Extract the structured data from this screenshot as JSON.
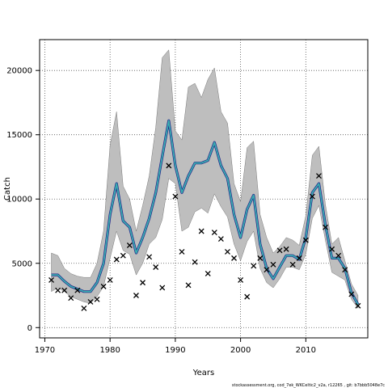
{
  "chart_data": {
    "type": "line",
    "xlabel": "Years",
    "ylabel": "Catch",
    "xlim": [
      1969.2,
      2019.5
    ],
    "ylim": [
      -800,
      22400
    ],
    "x_ticks": [
      1970,
      1980,
      1990,
      2000,
      2010
    ],
    "y_ticks": [
      0,
      5000,
      10000,
      15000,
      20000
    ],
    "grid": true,
    "footer": "stockassessment.org, cod_7ek_WKCeltic2_v2a, r12265 , git: b7bbb5048e7c",
    "colors": {
      "band": "#bebebe",
      "band_edge": "#7a7a7a",
      "line_main": "#20208a",
      "line_alt": "#3aaeb0",
      "observed": "#000000"
    },
    "years": [
      1971,
      1972,
      1973,
      1974,
      1975,
      1976,
      1977,
      1978,
      1979,
      1980,
      1981,
      1982,
      1983,
      1984,
      1985,
      1986,
      1987,
      1988,
      1989,
      1990,
      1991,
      1992,
      1993,
      1994,
      1995,
      1996,
      1997,
      1998,
      1999,
      2000,
      2001,
      2002,
      2003,
      2004,
      2005,
      2006,
      2007,
      2008,
      2009,
      2010,
      2011,
      2012,
      2013,
      2014,
      2015,
      2016,
      2017,
      2018
    ],
    "series": [
      {
        "values": [
          4100,
          4100,
          3600,
          3200,
          3000,
          2800,
          2800,
          3500,
          5000,
          8800,
          11200,
          8300,
          7800,
          5800,
          7000,
          8500,
          10500,
          13300,
          16100,
          12600,
          10500,
          11800,
          12800,
          12800,
          13000,
          14400,
          12600,
          11600,
          8800,
          7000,
          9200,
          10300,
          6500,
          4600,
          3800,
          4700,
          5600,
          5600,
          5300,
          7000,
          10500,
          11200,
          8000,
          5400,
          5400,
          4600,
          2700,
          1800
        ]
      },
      {
        "values": [
          4100,
          4100,
          3600,
          3200,
          3000,
          2800,
          2800,
          3500,
          5000,
          8800,
          11200,
          8300,
          7800,
          5800,
          7000,
          8500,
          10500,
          13300,
          16100,
          12600,
          10500,
          11800,
          12800,
          12800,
          13000,
          14400,
          12600,
          11600,
          8800,
          7000,
          9200,
          10300,
          6500,
          4600,
          3800,
          4700,
          5600,
          5600,
          5300,
          7000,
          10500,
          11200,
          8000,
          5400,
          5400,
          4600,
          2700,
          1800
        ]
      }
    ],
    "band_upper": [
      5800,
      5600,
      4600,
      4200,
      4000,
      3900,
      3900,
      5000,
      7500,
      14200,
      16800,
      11000,
      10000,
      7500,
      9500,
      11800,
      15600,
      21000,
      21600,
      15300,
      14600,
      18700,
      19000,
      17900,
      19300,
      20200,
      16800,
      15900,
      11200,
      9800,
      14000,
      14500,
      8800,
      7000,
      5800,
      6300,
      7000,
      6800,
      6400,
      8700,
      13400,
      14100,
      9600,
      6500,
      7000,
      5200,
      3400,
      2500
    ],
    "band_lower": [
      2800,
      3100,
      2800,
      2400,
      2200,
      2000,
      1900,
      2400,
      3200,
      5400,
      7500,
      6000,
      5700,
      4100,
      5000,
      6500,
      7000,
      8400,
      11600,
      11200,
      7500,
      7800,
      9000,
      9300,
      8900,
      10400,
      9400,
      8600,
      6500,
      5200,
      6700,
      7500,
      4600,
      3500,
      3100,
      3800,
      4700,
      4700,
      4500,
      5700,
      8500,
      9500,
      6800,
      4300,
      4000,
      3700,
      2200,
      1500
    ],
    "observed": {
      "years": [
        1971,
        1972,
        1973,
        1974,
        1975,
        1976,
        1977,
        1978,
        1979,
        1980,
        1981,
        1982,
        1983,
        1984,
        1985,
        1986,
        1987,
        1988,
        1989,
        1990,
        1991,
        1992,
        1993,
        1994,
        1995,
        1996,
        1997,
        1998,
        1999,
        2000,
        2001,
        2002,
        2003,
        2004,
        2005,
        2006,
        2007,
        2008,
        2009,
        2010,
        2011,
        2012,
        2013,
        2014,
        2015,
        2016,
        2017,
        2018
      ],
      "values": [
        3700,
        2900,
        2900,
        2300,
        2900,
        1500,
        2000,
        2200,
        3200,
        3700,
        5300,
        5600,
        6400,
        2500,
        3500,
        5500,
        4700,
        3100,
        12600,
        10200,
        5900,
        3300,
        5100,
        7500,
        4200,
        7400,
        6900,
        5900,
        5400,
        3700,
        2400,
        4800,
        5400,
        4500,
        4900,
        6000,
        6100,
        4900,
        5400,
        6800,
        10200,
        11800,
        7800,
        6100,
        5600,
        4500,
        2600,
        1700
      ]
    }
  }
}
